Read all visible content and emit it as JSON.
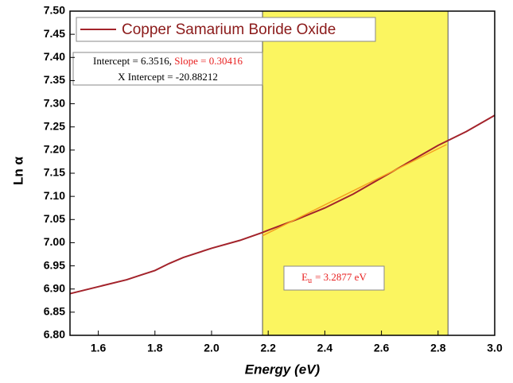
{
  "chart_data": {
    "type": "line",
    "x_label": "Energy (eV)",
    "y_label": "Ln α",
    "xlim": [
      1.5,
      3.0
    ],
    "xticks": [
      1.6,
      1.8,
      {
        "value": 2,
        "label": "2.0"
      },
      2.2,
      2.4,
      2.6,
      2.8,
      {
        "value": 3,
        "label": "3.0"
      }
    ],
    "ylim": [
      6.8,
      7.5
    ],
    "yticks": [
      {
        "value": 6.8,
        "label": "6.80"
      },
      6.85,
      {
        "value": 6.9,
        "label": "6.90"
      },
      6.95,
      {
        "value": 7,
        "label": "7.00"
      },
      7.05,
      {
        "value": 7.1,
        "label": "7.10"
      },
      7.15,
      {
        "value": 7.2,
        "label": "7.20"
      },
      7.25,
      {
        "value": 7.3,
        "label": "7.30"
      },
      7.35,
      {
        "value": 7.4,
        "label": "7.40"
      },
      7.45,
      {
        "value": 7.5,
        "label": "7.50"
      }
    ],
    "series": [
      {
        "name": "Copper Samarium Boride Oxide",
        "color": "#a3232b",
        "x": [
          1.5,
          1.6,
          1.7,
          1.75,
          1.8,
          1.85,
          1.9,
          2.0,
          2.1,
          2.18,
          2.2,
          2.3,
          2.4,
          2.5,
          2.6,
          2.7,
          2.8,
          2.9,
          3.0
        ],
        "values": [
          6.89,
          6.905,
          6.92,
          6.93,
          6.94,
          6.955,
          6.968,
          6.988,
          7.005,
          7.022,
          7.027,
          7.05,
          7.075,
          7.105,
          7.14,
          7.175,
          7.21,
          7.24,
          7.275
        ]
      }
    ],
    "fit_line": {
      "color": "#f5a020",
      "x": [
        2.18,
        2.83
      ],
      "values": [
        7.015,
        7.212
      ]
    },
    "highlight_span": {
      "color": "#fbf560",
      "x": [
        2.18,
        2.835
      ]
    },
    "fit_annotation": {
      "intercept": "Intercept = 6.3516, ",
      "slope": "Slope = 0.30416",
      "x_intercept": "X Intercept = -20.88212"
    },
    "eu_annotation": {
      "symbol": "E",
      "subscript": "u",
      "value": "=  3.2877 eV"
    }
  }
}
